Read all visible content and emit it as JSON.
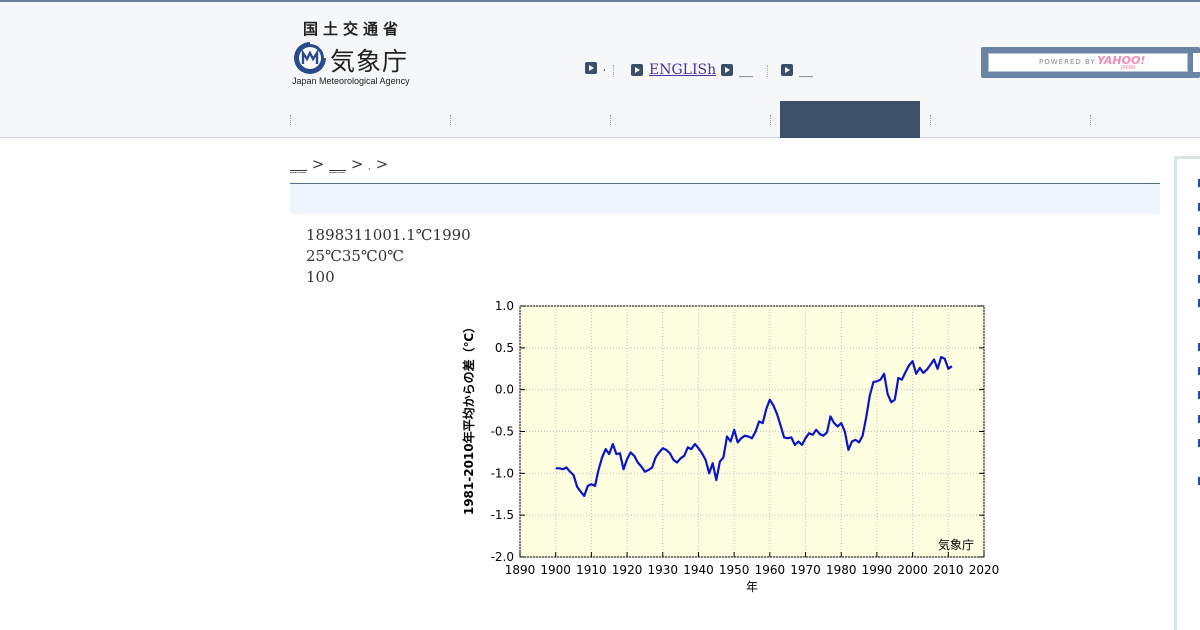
{
  "header": {
    "ministry": "国土交通省",
    "agency_jp": "気象庁",
    "agency_en": "Japan Meteorological Agency",
    "links": [
      {
        "label": ","
      },
      {
        "label": "ENGLISh"
      },
      {
        "label": "__"
      },
      {
        "label": "__"
      }
    ],
    "search": {
      "powered_by": "POWERED BY",
      "brand": "YAHOO!",
      "brand_sub": "JAPAN"
    }
  },
  "breadcrumb": {
    "items": [
      "__",
      "__"
    ],
    "separator": ">",
    "current": ","
  },
  "content": {
    "lines": [
      "1898311001.1℃1990",
      "25℃35℃0℃",
      "100"
    ]
  },
  "chart_data": {
    "type": "line",
    "title": "",
    "xlabel": "年",
    "ylabel": "1981-2010年平均からの差（℃）",
    "watermark": "気象庁",
    "xlim": [
      1890,
      2020
    ],
    "ylim": [
      -2.0,
      1.0
    ],
    "xticks": [
      "1890",
      "1900",
      "1910",
      "1920",
      "1930",
      "1940",
      "1950",
      "1960",
      "1970",
      "1980",
      "1990",
      "2000",
      "2010",
      "2020"
    ],
    "yticks": [
      "1.0",
      "0.5",
      "0.0",
      "-0.5",
      "-1.0",
      "-1.5",
      "-2.0"
    ],
    "grid": true,
    "colors": {
      "line": "#0a14c8",
      "background": "#fefee0"
    },
    "series": [
      {
        "x": [
          1900,
          1901,
          1902,
          1903,
          1904,
          1905,
          1906,
          1907,
          1908,
          1909,
          1910,
          1911,
          1912,
          1913,
          1914,
          1915,
          1916,
          1917,
          1918,
          1919,
          1920,
          1921,
          1922,
          1923,
          1924,
          1925,
          1926,
          1927,
          1928,
          1929,
          1930,
          1931,
          1932,
          1933,
          1934,
          1935,
          1936,
          1937,
          1938,
          1939,
          1940,
          1941,
          1942,
          1943,
          1944,
          1945,
          1946,
          1947,
          1948,
          1949,
          1950,
          1951,
          1952,
          1953,
          1954,
          1955,
          1956,
          1957,
          1958,
          1959,
          1960,
          1961,
          1962,
          1963,
          1964,
          1965,
          1966,
          1967,
          1968,
          1969,
          1970,
          1971,
          1972,
          1973,
          1974,
          1975,
          1976,
          1977,
          1978,
          1979,
          1980,
          1981,
          1982,
          1983,
          1984,
          1985,
          1986,
          1987,
          1988,
          1989,
          1990,
          1991,
          1992,
          1993,
          1994,
          1995,
          1996,
          1997,
          1998,
          1999,
          2000,
          2001,
          2002,
          2003,
          2004,
          2005,
          2006,
          2007,
          2008,
          2009,
          2010,
          2011
        ],
        "values": [
          -0.94,
          -0.94,
          -0.95,
          -0.93,
          -0.98,
          -1.02,
          -1.16,
          -1.22,
          -1.27,
          -1.15,
          -1.13,
          -1.15,
          -0.96,
          -0.81,
          -0.71,
          -0.77,
          -0.65,
          -0.77,
          -0.76,
          -0.95,
          -0.83,
          -0.75,
          -0.79,
          -0.87,
          -0.92,
          -0.98,
          -0.96,
          -0.93,
          -0.81,
          -0.75,
          -0.7,
          -0.72,
          -0.76,
          -0.84,
          -0.87,
          -0.82,
          -0.79,
          -0.69,
          -0.71,
          -0.65,
          -0.7,
          -0.76,
          -0.84,
          -1.0,
          -0.88,
          -1.08,
          -0.86,
          -0.81,
          -0.56,
          -0.62,
          -0.48,
          -0.63,
          -0.58,
          -0.55,
          -0.56,
          -0.58,
          -0.5,
          -0.38,
          -0.4,
          -0.23,
          -0.12,
          -0.19,
          -0.29,
          -0.43,
          -0.57,
          -0.58,
          -0.57,
          -0.66,
          -0.62,
          -0.66,
          -0.58,
          -0.52,
          -0.54,
          -0.48,
          -0.53,
          -0.55,
          -0.51,
          -0.32,
          -0.4,
          -0.44,
          -0.4,
          -0.5,
          -0.72,
          -0.62,
          -0.6,
          -0.63,
          -0.55,
          -0.33,
          -0.07,
          0.09,
          0.1,
          0.12,
          0.19,
          -0.05,
          -0.15,
          -0.12,
          0.14,
          0.12,
          0.21,
          0.29,
          0.34,
          0.19,
          0.26,
          0.2,
          0.24,
          0.3,
          0.36,
          0.25,
          0.39,
          0.37,
          0.25,
          0.28
        ]
      }
    ]
  },
  "sidebar": {
    "bullets": 12
  }
}
